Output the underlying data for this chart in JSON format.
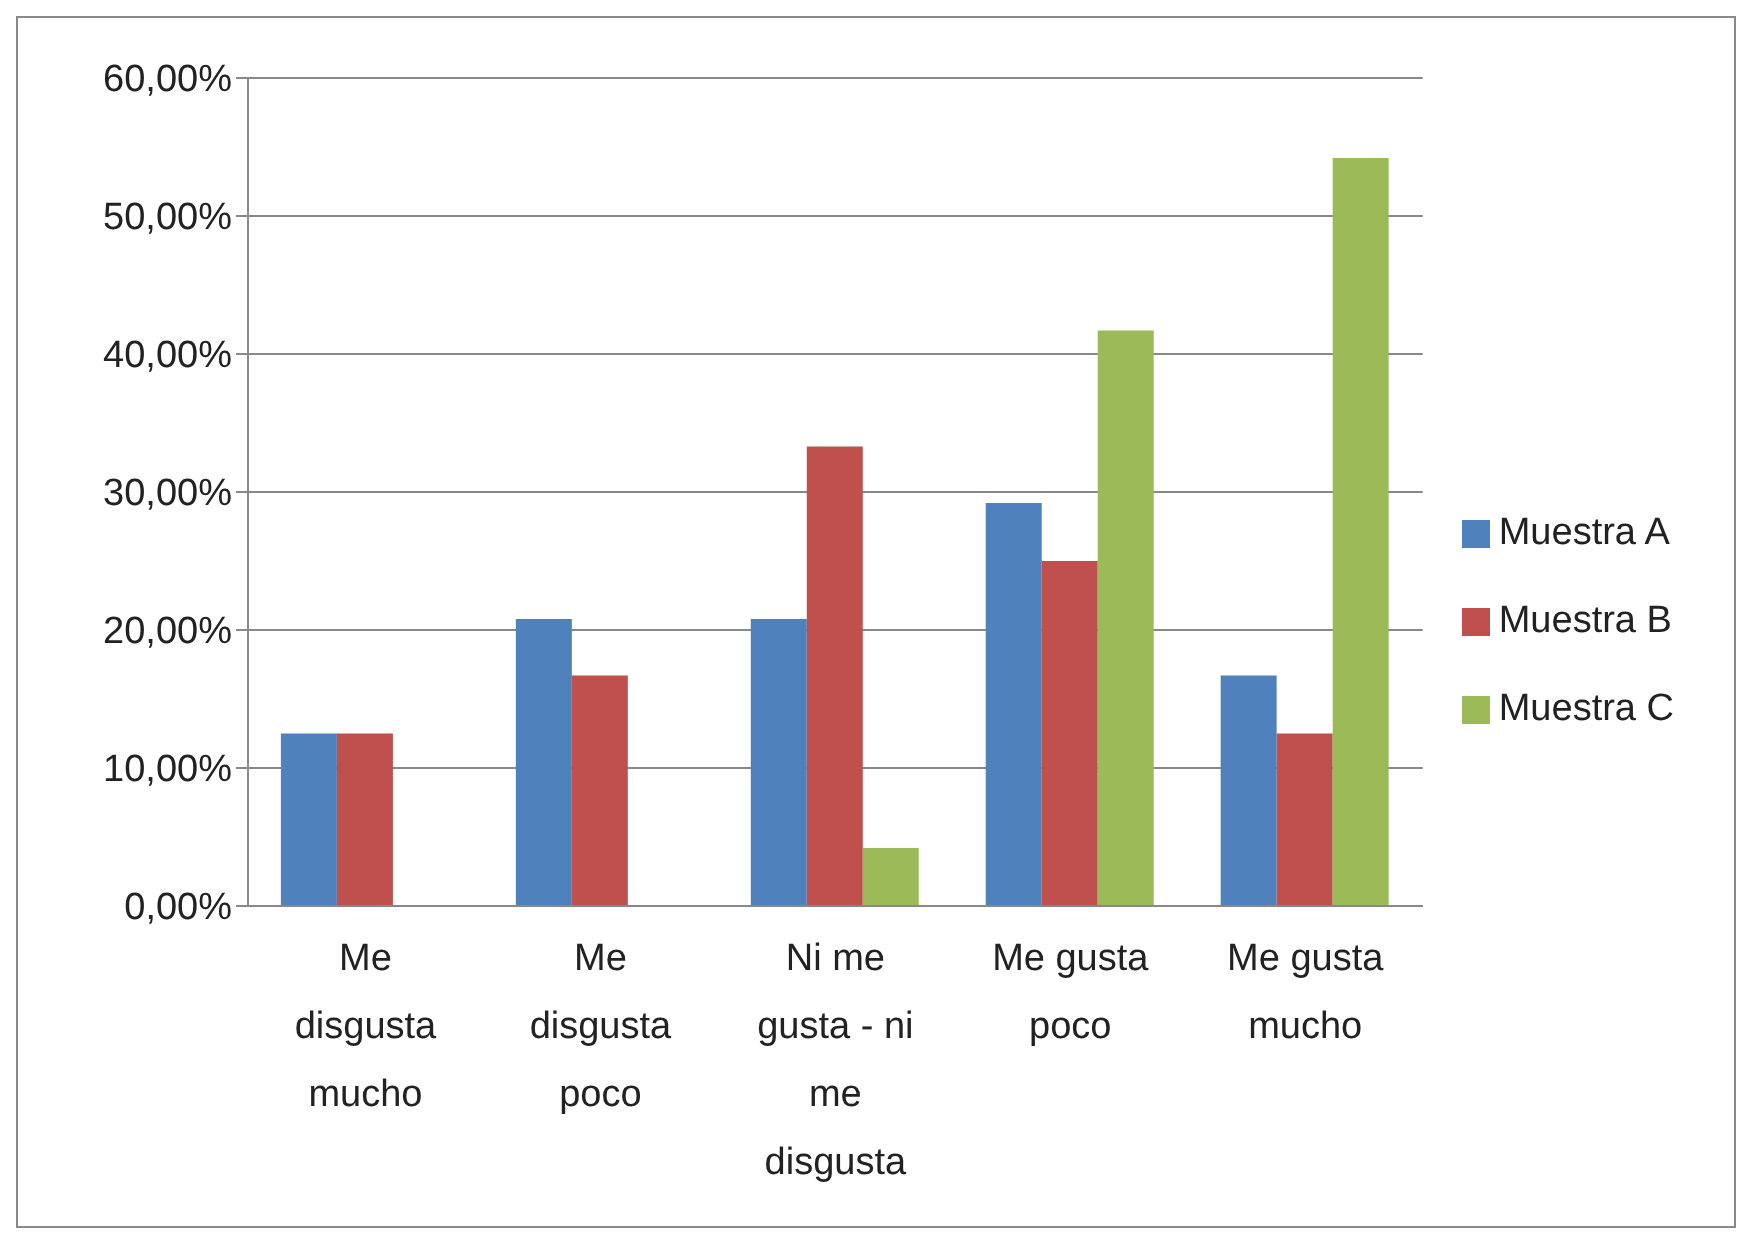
{
  "chart_data": {
    "type": "bar",
    "categories": [
      "Me disgusta mucho",
      "Me disgusta poco",
      "Ni me gusta - ni me disgusta",
      "Me gusta poco",
      "Me gusta mucho"
    ],
    "series": [
      {
        "name": "Muestra A",
        "color": "#4f81bd",
        "values": [
          12.5,
          20.8,
          20.8,
          29.2,
          16.7
        ]
      },
      {
        "name": "Muestra B",
        "color": "#c0504d",
        "values": [
          12.5,
          16.7,
          33.3,
          25.0,
          12.5
        ]
      },
      {
        "name": "Muestra C",
        "color": "#9bbb59",
        "values": [
          null,
          null,
          4.2,
          41.7,
          54.2
        ]
      }
    ],
    "ylim": [
      0,
      60
    ],
    "yticks": [
      {
        "value": 0,
        "label": "0,00%"
      },
      {
        "value": 10,
        "label": "10,00%"
      },
      {
        "value": 20,
        "label": "20,00%"
      },
      {
        "value": 30,
        "label": "30,00%"
      },
      {
        "value": 40,
        "label": "40,00%"
      },
      {
        "value": 50,
        "label": "50,00%"
      },
      {
        "value": 60,
        "label": "60,00%"
      }
    ],
    "grid": "y",
    "legend": "right"
  }
}
